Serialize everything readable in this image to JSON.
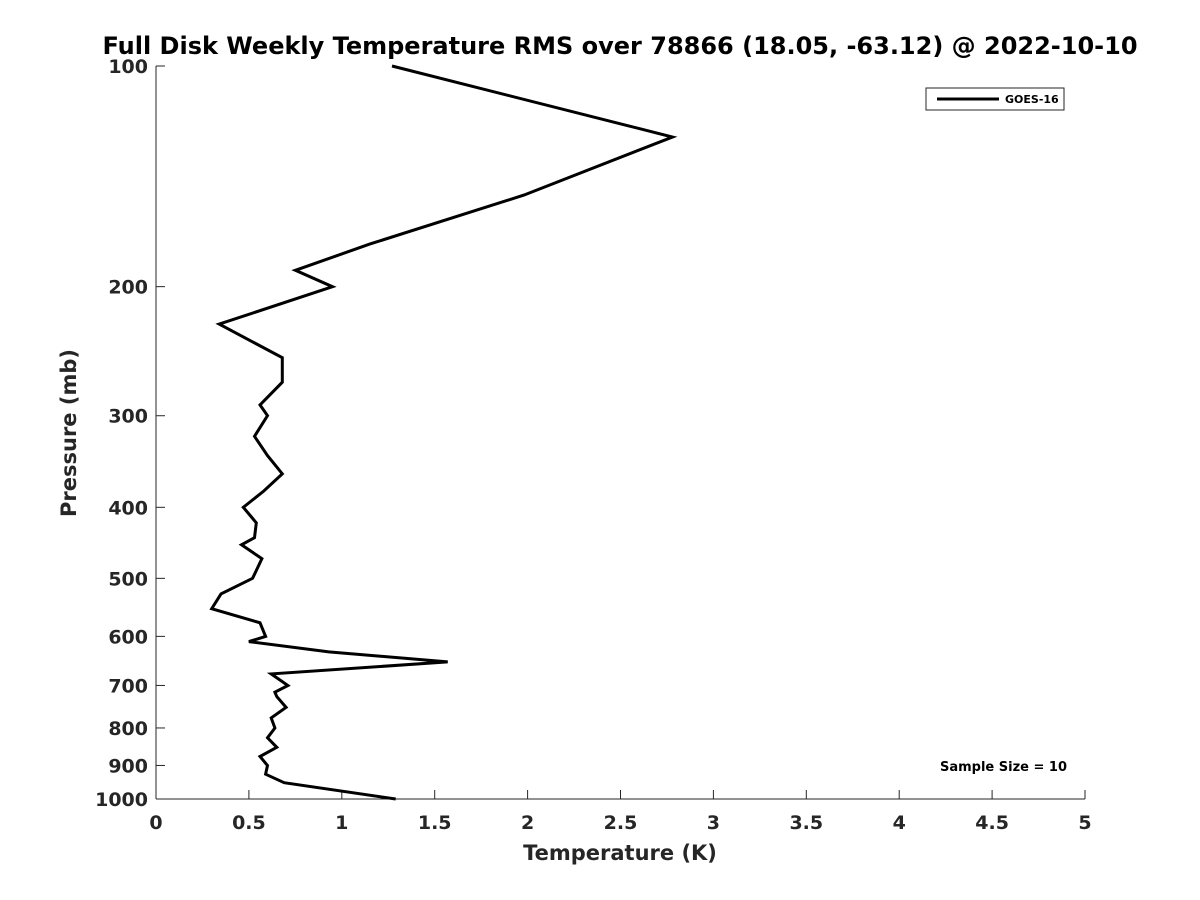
{
  "chart_data": {
    "type": "line",
    "title": "Full Disk Weekly Temperature RMS over 78866 (18.05, -63.12) @ 2022-10-10",
    "xlabel": "Temperature (K)",
    "ylabel": "Pressure (mb)",
    "xlim": [
      0,
      5
    ],
    "ylim": [
      100,
      1000
    ],
    "yscale": "log",
    "y_reversed": true,
    "xticks": [
      0,
      0.5,
      1,
      1.5,
      2,
      2.5,
      3,
      3.5,
      4,
      4.5,
      5
    ],
    "xtick_labels": [
      "0",
      "0.5",
      "1",
      "1.5",
      "2",
      "2.5",
      "3",
      "3.5",
      "4",
      "4.5",
      "5"
    ],
    "yticks": [
      100,
      200,
      300,
      400,
      500,
      600,
      700,
      800,
      900,
      1000
    ],
    "ytick_labels": [
      "100",
      "200",
      "300",
      "400",
      "500",
      "600",
      "700",
      "800",
      "900",
      "1000"
    ],
    "grid": false,
    "legend_position": "top-right",
    "series": [
      {
        "name": "GOES-16",
        "color": "#000000",
        "x": [
          1.27,
          2.78,
          1.98,
          1.15,
          0.75,
          0.95,
          0.34,
          0.68,
          0.68,
          0.56,
          0.6,
          0.53,
          0.6,
          0.68,
          0.58,
          0.47,
          0.54,
          0.53,
          0.46,
          0.57,
          0.52,
          0.35,
          0.3,
          0.56,
          0.59,
          0.5,
          0.93,
          1.57,
          0.62,
          0.71,
          0.64,
          0.65,
          0.7,
          0.62,
          0.64,
          0.6,
          0.65,
          0.56,
          0.6,
          0.59,
          0.69,
          1.29
        ],
        "y": [
          100,
          125,
          150,
          175,
          190,
          200,
          225,
          250,
          270,
          290,
          300,
          320,
          340,
          360,
          380,
          400,
          420,
          440,
          450,
          470,
          500,
          525,
          550,
          575,
          600,
          610,
          630,
          650,
          675,
          700,
          715,
          725,
          750,
          775,
          800,
          825,
          850,
          875,
          900,
          925,
          950,
          1000
        ]
      }
    ],
    "annotation": "Sample Size = 10"
  }
}
